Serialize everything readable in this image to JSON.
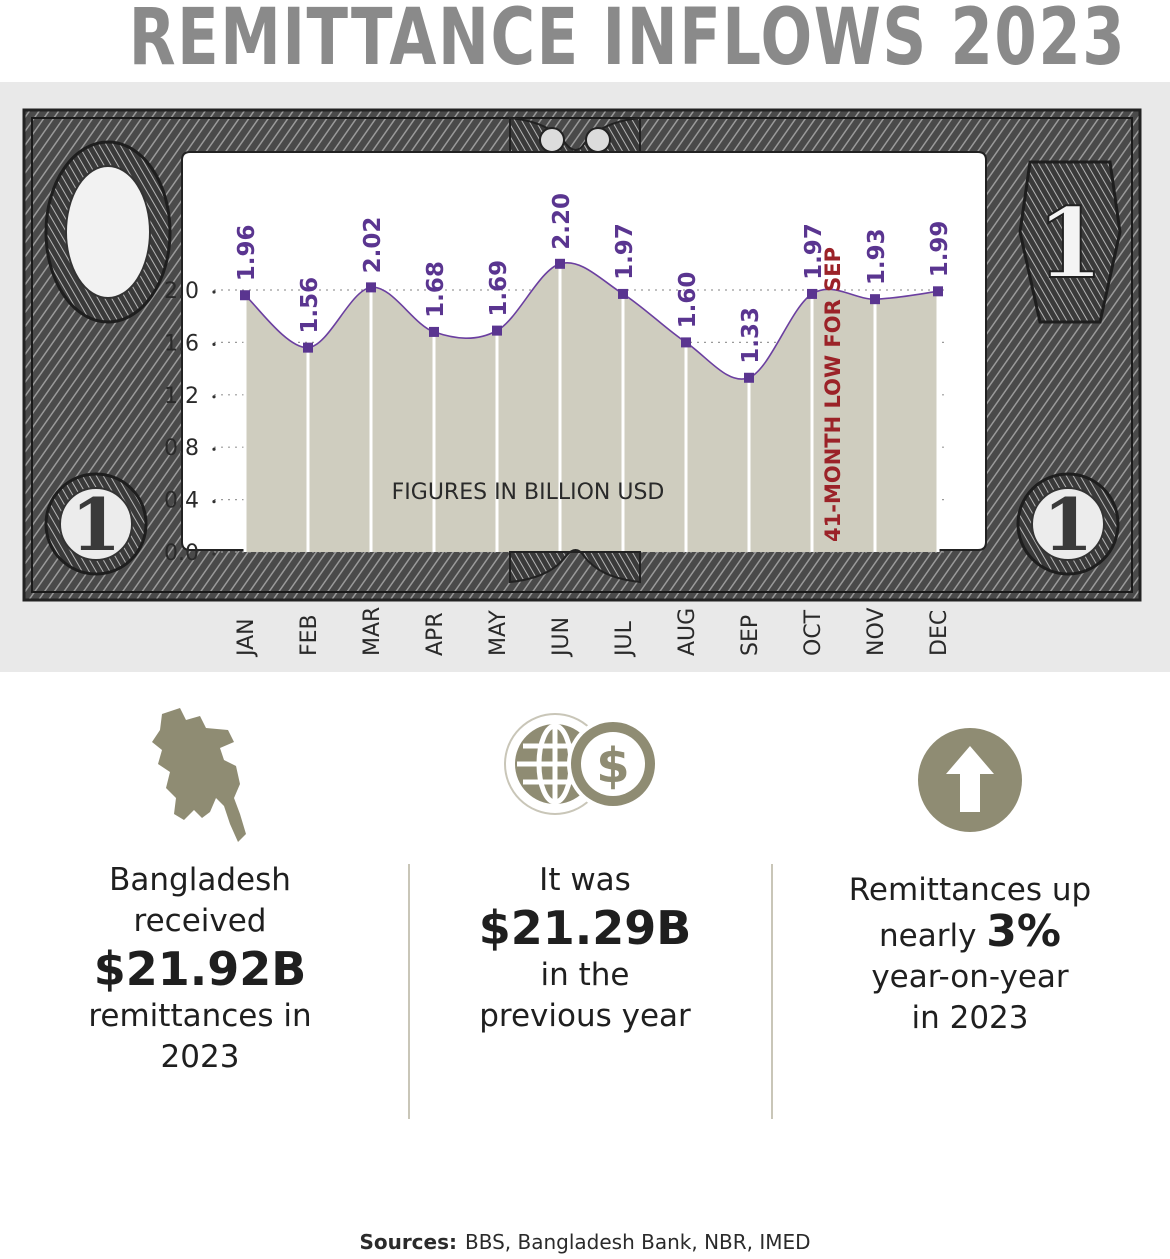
{
  "title": "REMITTANCE INFLOWS 2023",
  "colors": {
    "area_fill": "#cfcdbf",
    "line": "#6b3fa0",
    "marker": "#5a3590",
    "value_label": "#5a3590",
    "annotation": "#9b2228",
    "icon": "#8f8c73",
    "title": "#8a8a8a"
  },
  "chart_data": {
    "type": "area",
    "categories": [
      "JAN",
      "FEB",
      "MAR",
      "APR",
      "MAY",
      "JUN",
      "JUL",
      "AUG",
      "SEP",
      "OCT",
      "NOV",
      "DEC"
    ],
    "series": [
      {
        "values": [
          1.96,
          1.56,
          2.02,
          1.68,
          1.69,
          2.2,
          1.97,
          1.6,
          1.33,
          1.97,
          1.93,
          1.99
        ]
      }
    ],
    "ylim": [
      0,
      2.0
    ],
    "yticks": [
      "0.0",
      "0.4",
      "0.8",
      "1.2",
      "1.6",
      "2.0"
    ],
    "note": "FIGURES IN BILLION USD",
    "annotation": {
      "category": "OCT",
      "text": "41-MONTH LOW FOR SEP"
    },
    "grid": "dotted horizontal"
  },
  "stats": [
    {
      "icon": "bangladesh-map-icon",
      "line1": "Bangladesh",
      "line2": "received",
      "big": "$21.92B",
      "line3": "remittances in",
      "line4": "2023"
    },
    {
      "icon": "globe-dollar-icon",
      "line1": "It was",
      "big": "$21.29B",
      "line2": "in the",
      "line3": "previous year"
    },
    {
      "icon": "up-arrow-icon",
      "line1": "Remittances up",
      "line2_prefix": "nearly",
      "big": "3%",
      "line3": "year-on-year",
      "line4": "in 2023"
    }
  ],
  "sources": {
    "label": "Sources:",
    "text": "BBS, Bangladesh Bank, NBR, IMED"
  }
}
